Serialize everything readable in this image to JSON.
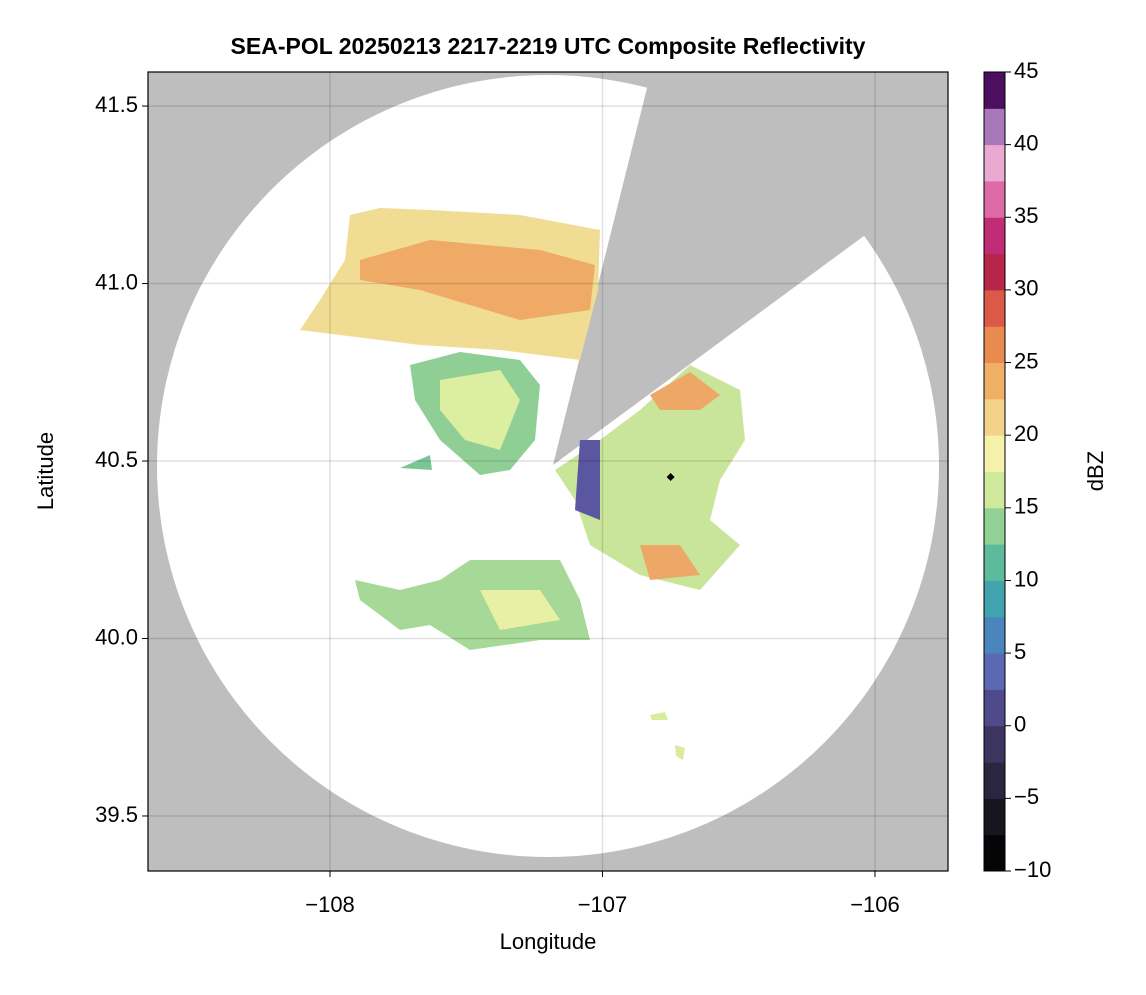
{
  "chart_data": {
    "type": "radar",
    "title": "SEA-POL 20250213 2217-2219 UTC Composite Reflectivity",
    "xlabel": "Longitude",
    "ylabel": "Latitude",
    "xlim": [
      -108.668,
      -105.732
    ],
    "xticks": [
      {
        "value": -108,
        "label": "−108"
      },
      {
        "value": -107,
        "label": "−107"
      },
      {
        "value": -106,
        "label": "−106"
      }
    ],
    "ylim": [
      39.345,
      41.596
    ],
    "yticks": [
      39.5,
      {
        "value": 40.0,
        "label": "40.0"
      },
      40.5,
      {
        "value": 41.0,
        "label": "41.0"
      },
      41.5
    ],
    "grid": true,
    "marker": {
      "x": -106.75,
      "y": 40.455,
      "color": "#000000"
    },
    "colorbar": {
      "label": "dBZ",
      "lim": [
        -10,
        45
      ],
      "ticks": [
        {
          "value": -10,
          "label": "−10"
        },
        {
          "value": -5,
          "label": "−5"
        },
        0,
        5,
        10,
        15,
        20,
        25,
        30,
        35,
        40,
        45
      ],
      "colors": [
        "#050407",
        "#17151f",
        "#2b2640",
        "#3d3560",
        "#504a8c",
        "#5b68b4",
        "#4a86bc",
        "#40a3ad",
        "#5cbb9c",
        "#93d095",
        "#cfe99c",
        "#f6f1ab",
        "#f3d389",
        "#efb066",
        "#e98a4e",
        "#db5a47",
        "#b82548",
        "#c12c77",
        "#dd6aa6",
        "#e9a9d1",
        "#a878b8",
        "#4c0e5e"
      ]
    }
  }
}
